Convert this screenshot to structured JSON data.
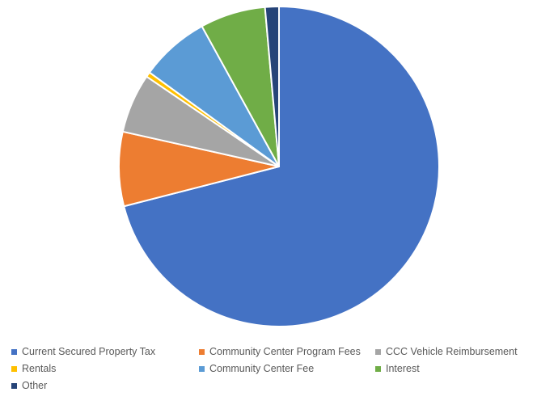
{
  "chart_data": {
    "type": "pie",
    "title": "",
    "categories": [
      "Current Secured Property Tax",
      "Community Center Program Fees",
      "CCC Vehicle Reimbursement",
      "Rentals",
      "Community Center Fee",
      "Interest",
      "Other"
    ],
    "values": [
      71.0,
      7.5,
      6.0,
      0.5,
      7.0,
      6.6,
      1.4
    ],
    "colors": [
      "#4472C4",
      "#ED7D31",
      "#A5A5A5",
      "#FFC000",
      "#5B9BD5",
      "#70AD47",
      "#264478"
    ],
    "legend_position": "bottom",
    "start_angle_deg": 0,
    "direction": "clockwise"
  }
}
